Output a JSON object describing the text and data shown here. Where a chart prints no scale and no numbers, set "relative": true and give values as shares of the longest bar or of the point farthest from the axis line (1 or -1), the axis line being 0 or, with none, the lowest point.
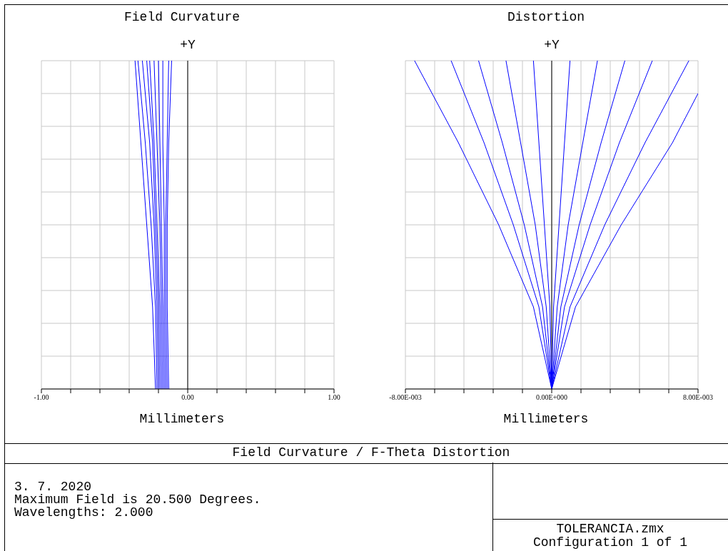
{
  "chart_data": [
    {
      "type": "line",
      "title": "Field Curvature",
      "ylabel": "+Y",
      "xlabel": "Millimeters",
      "relative": true,
      "grid": true,
      "xlim": [
        -1,
        1
      ],
      "xticks": [
        {
          "value": -1,
          "label": "-1.00"
        },
        {
          "value": -0.8,
          "label": null
        },
        {
          "value": -0.6,
          "label": null
        },
        {
          "value": -0.4,
          "label": null
        },
        {
          "value": -0.2,
          "label": null
        },
        {
          "value": 0,
          "label": "0.00"
        },
        {
          "value": 0.2,
          "label": null
        },
        {
          "value": 0.4,
          "label": null
        },
        {
          "value": 0.6,
          "label": null
        },
        {
          "value": 0.8,
          "label": null
        },
        {
          "value": 1,
          "label": "1.00"
        }
      ],
      "ref_lines": [
        {
          "axis": "x",
          "value": 0,
          "color": "#000000"
        }
      ],
      "annotations": [
        "Field Curvature / F-Theta Distortion",
        "3. 7. 2020",
        "Maximum Field is 20.500 Degrees.",
        "Wavelengths: 2.000",
        "TOLERANCIA.zmx",
        "Configuration 1 of 1"
      ],
      "series": [
        {
          "color": "#0000ff",
          "x": [
            -0.22,
            -0.24,
            -0.28,
            -0.32,
            -0.36
          ],
          "values": [
            0,
            0.25,
            0.5,
            0.75,
            1
          ]
        },
        {
          "color": "#0000ff",
          "x": [
            -0.21,
            -0.22,
            -0.25,
            -0.29,
            -0.34
          ],
          "values": [
            0,
            0.25,
            0.5,
            0.75,
            1
          ]
        },
        {
          "color": "#0000ff",
          "x": [
            -0.2,
            -0.21,
            -0.23,
            -0.26,
            -0.31
          ],
          "values": [
            0,
            0.25,
            0.5,
            0.75,
            1
          ]
        },
        {
          "color": "#0000ff",
          "x": [
            -0.19,
            -0.2,
            -0.22,
            -0.24,
            -0.28
          ],
          "values": [
            0,
            0.25,
            0.5,
            0.75,
            1
          ]
        },
        {
          "color": "#0000ff",
          "x": [
            -0.18,
            -0.19,
            -0.21,
            -0.23,
            -0.26
          ],
          "values": [
            0,
            0.25,
            0.5,
            0.75,
            1
          ]
        },
        {
          "color": "#0000ff",
          "x": [
            -0.17,
            -0.18,
            -0.19,
            -0.21,
            -0.23
          ],
          "values": [
            0,
            0.25,
            0.5,
            0.75,
            1
          ]
        },
        {
          "color": "#0000ff",
          "x": [
            -0.16,
            -0.17,
            -0.18,
            -0.19,
            -0.2
          ],
          "values": [
            0,
            0.25,
            0.5,
            0.75,
            1
          ]
        },
        {
          "color": "#0000ff",
          "x": [
            -0.15,
            -0.16,
            -0.16,
            -0.17,
            -0.17
          ],
          "values": [
            0,
            0.25,
            0.5,
            0.75,
            1
          ]
        },
        {
          "color": "#0000ff",
          "x": [
            -0.14,
            -0.15,
            -0.15,
            -0.14,
            -0.13
          ],
          "values": [
            0,
            0.25,
            0.5,
            0.75,
            1
          ]
        },
        {
          "color": "#0000ff",
          "x": [
            -0.13,
            -0.14,
            -0.14,
            -0.13,
            -0.11
          ],
          "values": [
            0,
            0.25,
            0.5,
            0.75,
            1
          ]
        }
      ]
    },
    {
      "type": "line",
      "title": "Distortion",
      "ylabel": "+Y",
      "xlabel": "Millimeters",
      "relative": true,
      "grid": true,
      "xlim": [
        -0.008,
        0.008
      ],
      "xticks": [
        {
          "value": -0.008,
          "label": "-8.00E-003"
        },
        {
          "value": -0.0064,
          "label": null
        },
        {
          "value": -0.0048,
          "label": null
        },
        {
          "value": -0.0032,
          "label": null
        },
        {
          "value": -0.0016,
          "label": null
        },
        {
          "value": 0,
          "label": "0.00E+000"
        },
        {
          "value": 0.0016,
          "label": null
        },
        {
          "value": 0.0032,
          "label": null
        },
        {
          "value": 0.0048,
          "label": null
        },
        {
          "value": 0.0064,
          "label": null
        },
        {
          "value": 0.008,
          "label": "8.00E-003"
        }
      ],
      "ref_lines": [
        {
          "axis": "x",
          "value": 0,
          "color": "#000000"
        }
      ],
      "series": [
        {
          "color": "#0000ff",
          "x": [
            0,
            -0.001,
            -0.0029,
            -0.0051,
            -0.0075
          ],
          "values": [
            0,
            0.25,
            0.5,
            0.75,
            1
          ]
        },
        {
          "color": "#0000ff",
          "x": [
            0,
            -0.0007,
            -0.0021,
            -0.0037,
            -0.0055
          ],
          "values": [
            0,
            0.25,
            0.5,
            0.75,
            1
          ]
        },
        {
          "color": "#0000ff",
          "x": [
            0,
            -0.0005,
            -0.0015,
            -0.0027,
            -0.004
          ],
          "values": [
            0,
            0.25,
            0.5,
            0.75,
            1
          ]
        },
        {
          "color": "#0000ff",
          "x": [
            0,
            -0.0003,
            -0.0009,
            -0.0017,
            -0.0025
          ],
          "values": [
            0,
            0.25,
            0.5,
            0.75,
            1
          ]
        },
        {
          "color": "#0000ff",
          "x": [
            0,
            -0.0001,
            -0.0004,
            -0.0007,
            -0.001
          ],
          "values": [
            0,
            0.25,
            0.5,
            0.75,
            1
          ]
        },
        {
          "color": "#0000ff",
          "x": [
            0,
            0.0001,
            0.0004,
            0.0007,
            0.001
          ],
          "values": [
            0,
            0.25,
            0.5,
            0.75,
            1
          ]
        },
        {
          "color": "#0000ff",
          "x": [
            0,
            0.0003,
            0.0009,
            0.0017,
            0.0025
          ],
          "values": [
            0,
            0.25,
            0.5,
            0.75,
            1
          ]
        },
        {
          "color": "#0000ff",
          "x": [
            0,
            0.0005,
            0.0015,
            0.0027,
            0.004
          ],
          "values": [
            0,
            0.25,
            0.5,
            0.75,
            1
          ]
        },
        {
          "color": "#0000ff",
          "x": [
            0,
            0.0007,
            0.0021,
            0.0037,
            0.0055
          ],
          "values": [
            0,
            0.25,
            0.5,
            0.75,
            1
          ]
        },
        {
          "color": "#0000ff",
          "x": [
            0,
            0.001,
            0.0029,
            0.0051,
            0.0075
          ],
          "values": [
            0,
            0.25,
            0.5,
            0.75,
            1
          ]
        },
        {
          "color": "#0000ff",
          "x": [
            0,
            0.0013,
            0.0038,
            0.0066,
            0.008
          ],
          "values": [
            0,
            0.25,
            0.5,
            0.75,
            0.9
          ]
        }
      ]
    }
  ]
}
